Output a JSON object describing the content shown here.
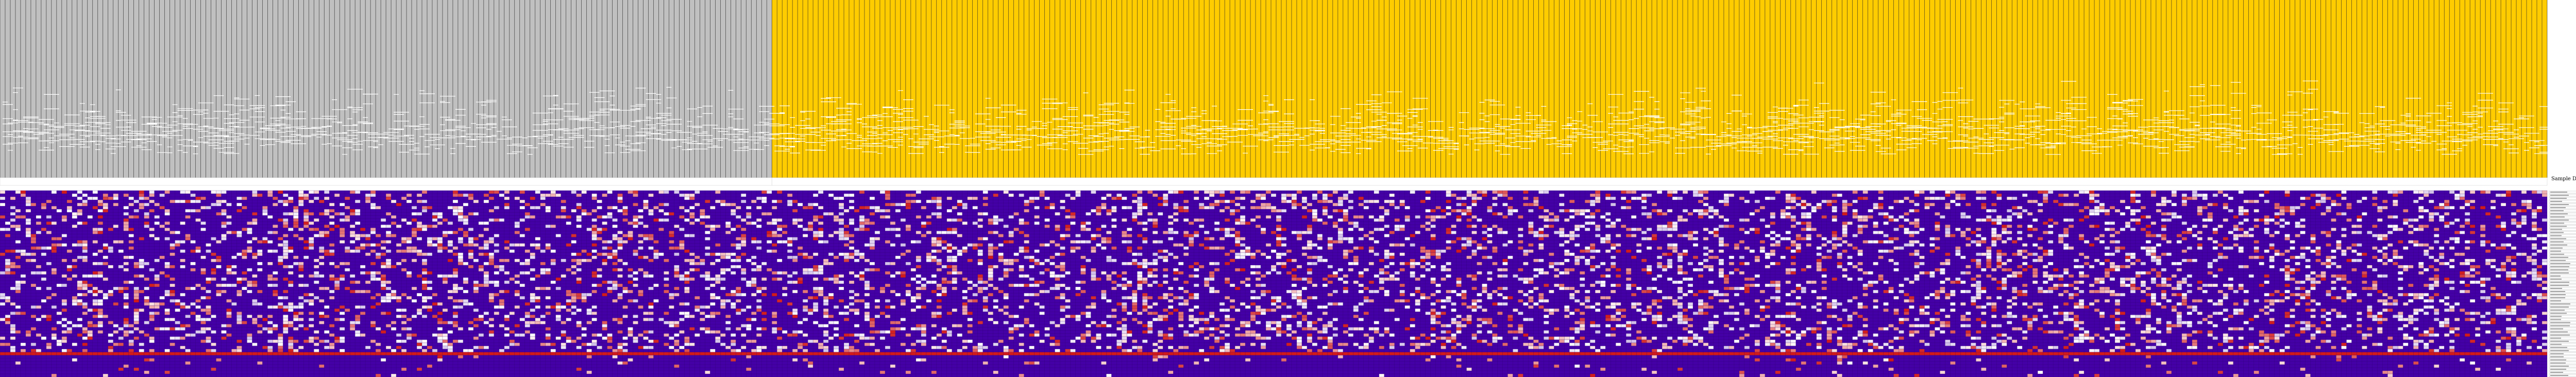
{
  "chart_data": {
    "type": "heatmap",
    "title": "",
    "xlabel": "",
    "ylabel": "",
    "legend": {
      "title": "Sample Description",
      "placement": "right"
    },
    "groups": [
      {
        "name": "",
        "color": "#c0c0c0",
        "columns": 150
      },
      {
        "name": "",
        "color": "#ffcc00",
        "columns": 345
      }
    ],
    "colorscale": {
      "low": "#4400a6",
      "mid": "#ffffff",
      "high": "#d11a1a"
    },
    "grid": true
  },
  "colors": {
    "group_track_grey": "#c0c0c0",
    "group_track_gold": "#ffcc00",
    "track_line": "#222222",
    "heat_low": "#4400a6",
    "heat_high": "#d11a1a",
    "heat_mid": "#ffffff"
  }
}
